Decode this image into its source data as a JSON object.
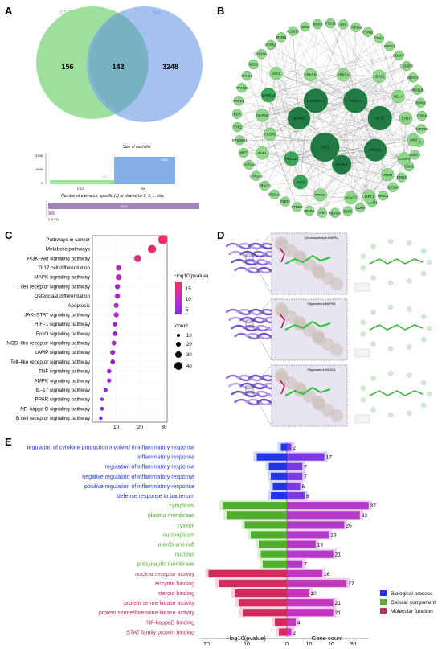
{
  "panels": {
    "A": {
      "label": "A",
      "venn": {
        "left_name": "CSO",
        "right_name": "RA",
        "left_only": "156",
        "overlap": "142",
        "right_only": "3248",
        "left_color": "#7ed67a",
        "right_color": "#7ea6e8"
      },
      "upset": {
        "title_top": "Size of each list",
        "y_ticks": [
          "3398",
          "1695",
          "0"
        ],
        "bars": [
          {
            "name": "CSO",
            "value": 298,
            "label": "298"
          },
          {
            "name": "RA",
            "value": 3390,
            "label": "3390"
          }
        ],
        "title_bottom": "Number of elements: specific (1) or shared by 2, 3, ... lists",
        "shared_bar_label": "3404",
        "shared_axis_label": "2 (142)"
      }
    },
    "B": {
      "label": "B",
      "nodes": [
        "SYK",
        "CYP1A2",
        "PTPN2",
        "CDK2",
        "HDAC1",
        "HDAC7",
        "CDC25B",
        "HDAC4",
        "HSD11B1",
        "RIPK2",
        "CDK4",
        "CYP2D6",
        "AR",
        "DNMT1",
        "CDK1",
        "DRD2",
        "SLC6A3",
        "NR3C1",
        "FGFR1",
        "CDK6",
        "TERT",
        "HDAC6",
        "AHR",
        "PPARA",
        "PTGES",
        "CNR1",
        "SRD5A1",
        "PRKCQ",
        "CYP2C9",
        "CYP3A4",
        "MET",
        "RPS6KB1",
        "TYK2",
        "PGR",
        "PTGS2",
        "PPARG",
        "SPHK2",
        "NOS1",
        "CYP19A1",
        "PTPN1",
        "RXRB",
        "ALOX15",
        "NOS2",
        "NOS3",
        "PTGS1"
      ],
      "inner_nodes": [
        "JAK1",
        "PRKCB",
        "PRKCA",
        "HDAC1",
        "MAPK14",
        "MAPK8",
        "HSP90AA1",
        "PIK3CA",
        "RELA",
        "ESR2",
        "CASP8",
        "MAPK1",
        "AKT1",
        "JAK3",
        "RAF1",
        "ESR1",
        "PTPN11",
        "CASP3",
        "PRKCD",
        "MAPK3",
        "MTOR",
        "JAK2",
        "PTPN6",
        "HDAC2",
        "SIRT1"
      ]
    },
    "C": {
      "label": "C",
      "legend_color_title": "−log10(pvalue)",
      "legend_color_ticks": [
        "15",
        "10",
        "5"
      ],
      "legend_size_title": "count",
      "legend_size_ticks": [
        "10",
        "20",
        "30",
        "40"
      ]
    },
    "D": {
      "label": "D",
      "complexes": [
        "Cinnamaldehyde-MAPK1",
        "Stigmasterol-MAPK1",
        "Stigmasterol-HDAC1"
      ]
    },
    "E": {
      "label": "E",
      "xlabel_left": "−log10(pvalue)",
      "xlabel_right": "Gene count",
      "x_ticks_left": [
        "20",
        "10",
        "0"
      ],
      "x_ticks_right": [
        "0",
        "10",
        "20",
        "30"
      ],
      "legend": [
        {
          "name": "Biological process",
          "color": "#1f35e6"
        },
        {
          "name": "Cellular component",
          "color": "#4fae2c"
        },
        {
          "name": "Molecular function",
          "color": "#c12d5a"
        }
      ]
    }
  },
  "chart_data": [
    {
      "type": "scatter",
      "panel": "C",
      "xlim": [
        0,
        30
      ],
      "x_ticks": [
        10,
        20,
        30
      ],
      "categories": [
        "Pathways in cancer",
        "Metabolic pathways",
        "PI3K–Akt signaling pathway",
        "Th17 cell differentiation",
        "MAPK signaling pathway",
        "T cell receptor signaling pathway",
        "Osteoclast differentiation",
        "Apoptosis",
        "JAK–STAT signaling pathway",
        "HIF–1 signaling pathway",
        "FoxO signaling pathway",
        "NOD–like receptor signaling pathway",
        "cAMP signaling pathway",
        "Toll–like receptor signaling pathway",
        "TNF signaling pathway",
        "AMPK signaling pathway",
        "IL–17 signaling pathway",
        "PPAR signaling pathway",
        "NF–kappa B signaling pathway",
        "B cell receptor signaling pathway"
      ],
      "x": [
        29.5,
        25,
        19,
        11,
        11,
        10.5,
        10.5,
        10,
        10,
        9.5,
        9.5,
        9,
        8.5,
        8.5,
        7,
        7,
        5.5,
        4,
        4,
        3.5
      ],
      "count": [
        42,
        35,
        28,
        18,
        20,
        16,
        16,
        15,
        16,
        14,
        14,
        14,
        15,
        13,
        12,
        11,
        10,
        7,
        8,
        7
      ],
      "pvalue_log": [
        17,
        16,
        14,
        9,
        9,
        8,
        8,
        8,
        8,
        7,
        7,
        7,
        7,
        6,
        6,
        6,
        5,
        4,
        4,
        4
      ]
    },
    {
      "type": "bar",
      "panel": "E",
      "categories": [
        "regulation of cytokine production involved in inflammatory response",
        "inflammatory response",
        "regulation of inflammatory response",
        "negative regulation of inflammatory response",
        "positive regulation of inflammatory response",
        "defense response to bacterium",
        "cytoplasm",
        "plasma membrane",
        "cytosol",
        "nucleoplasm",
        "membrane raft",
        "nucleus",
        "presynaptic membrane",
        "nuclear receptor activity",
        "enzyme binding",
        "steroid binding",
        "protein serine kinase activity",
        "protein serine/threonine kinase activity",
        "NF-kappaB binding",
        "STAT family protein binding"
      ],
      "group": [
        "BP",
        "BP",
        "BP",
        "BP",
        "BP",
        "BP",
        "CC",
        "CC",
        "CC",
        "CC",
        "CC",
        "CC",
        "CC",
        "MF",
        "MF",
        "MF",
        "MF",
        "MF",
        "MF",
        "MF"
      ],
      "neg_log_p": [
        1.5,
        7.5,
        4.5,
        4,
        3.5,
        4,
        16,
        15,
        10.5,
        9,
        7,
        6.5,
        6,
        19.5,
        17,
        13,
        12,
        11,
        3,
        2
      ],
      "gene_count": [
        2,
        17,
        7,
        7,
        6,
        8,
        37,
        33,
        26,
        19,
        13,
        21,
        7,
        16,
        27,
        10,
        21,
        21,
        4,
        2
      ],
      "gene_count_labels": [
        "2",
        "17",
        "7",
        "7",
        "6",
        "8",
        "37",
        "33",
        "26",
        "19",
        "13",
        "21",
        "7",
        "16",
        "27",
        "10",
        "21",
        "21",
        "4",
        "2"
      ]
    }
  ]
}
